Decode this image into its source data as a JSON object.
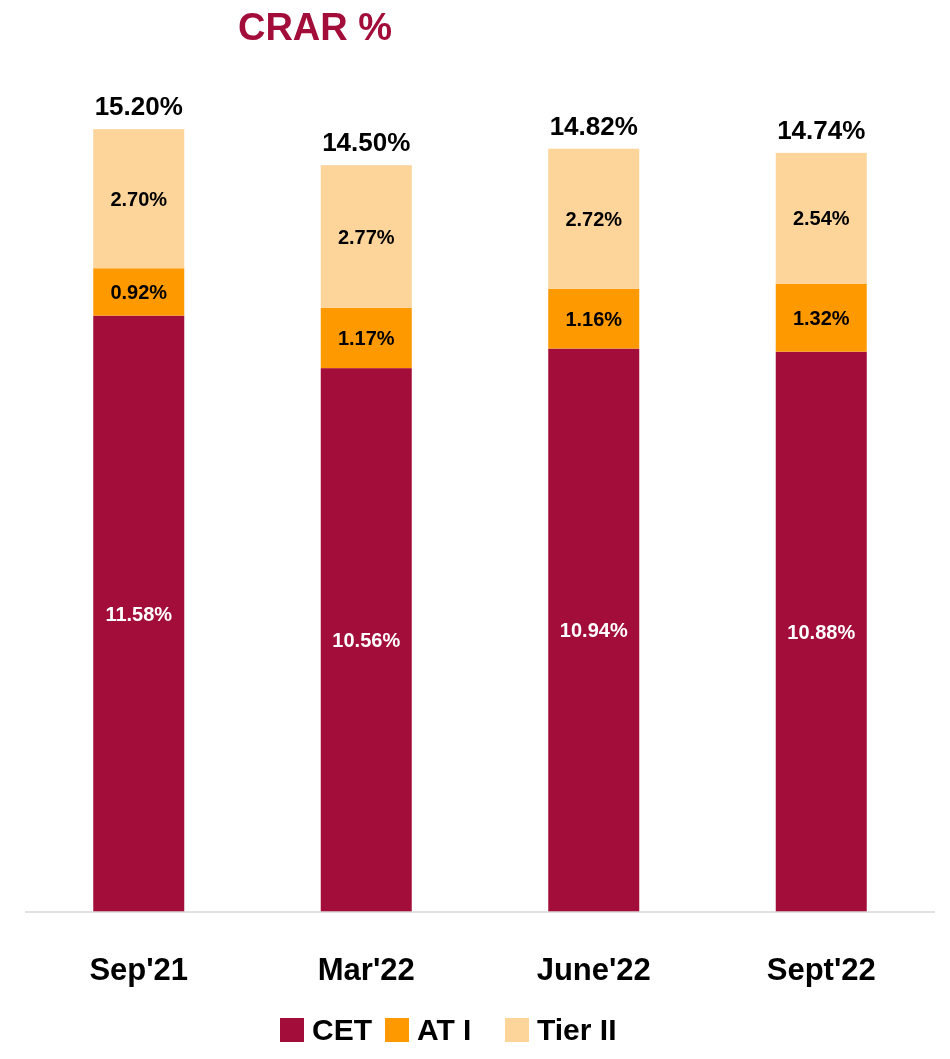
{
  "chart_data": {
    "type": "bar",
    "title": "CRAR %",
    "stacked": true,
    "categories": [
      "Sep'21",
      "Mar'22",
      "June'22",
      "Sept'22"
    ],
    "series": [
      {
        "name": "CET",
        "color": "#a20d3a",
        "values": [
          11.58,
          10.56,
          10.94,
          10.88
        ],
        "value_labels": [
          "11.58%",
          "10.56%",
          "10.94%",
          "10.88%"
        ]
      },
      {
        "name": "AT I",
        "color": "#ff9900",
        "values": [
          0.92,
          1.17,
          1.16,
          1.32
        ],
        "value_labels": [
          "0.92%",
          "1.17%",
          "1.16%",
          "1.32%"
        ]
      },
      {
        "name": "Tier II",
        "color": "#fdd49a",
        "values": [
          2.7,
          2.77,
          2.72,
          2.54
        ],
        "value_labels": [
          "2.70%",
          "2.77%",
          "2.72%",
          "2.54%"
        ]
      }
    ],
    "totals": [
      "15.20%",
      "14.50%",
      "14.82%",
      "14.74%"
    ],
    "legend": "bottom"
  }
}
